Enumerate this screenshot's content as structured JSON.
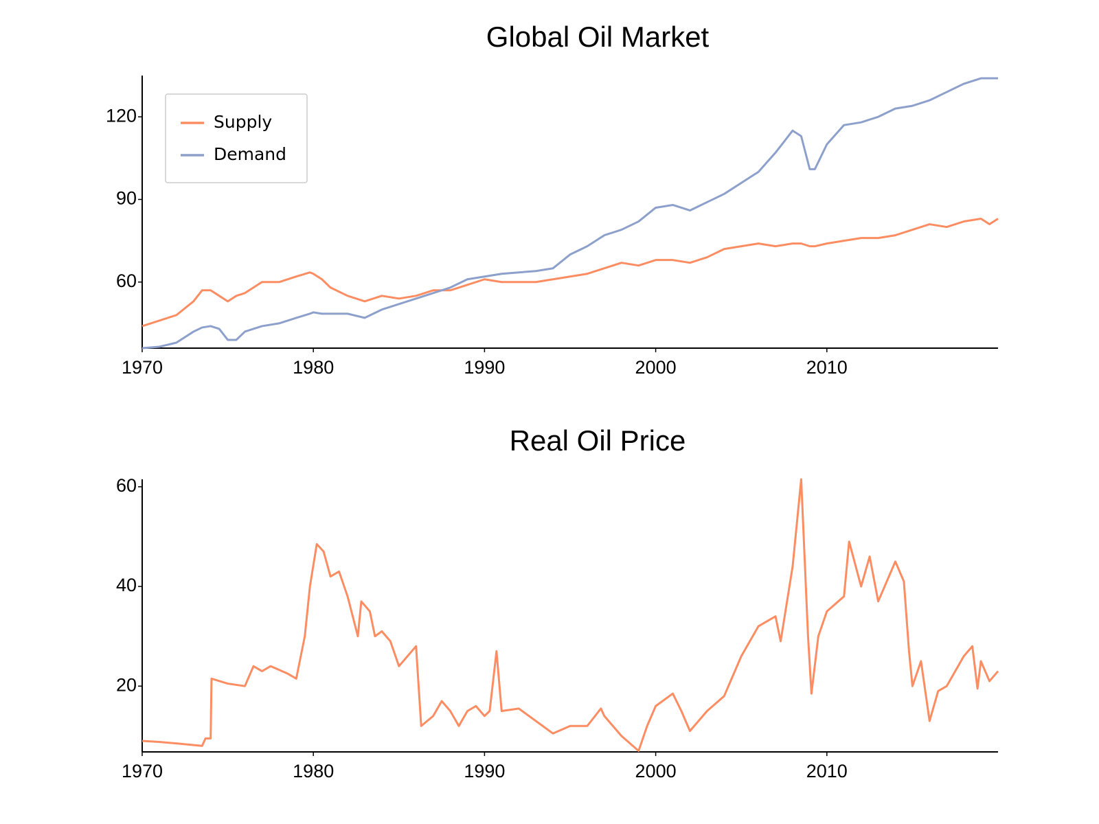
{
  "chart_data": [
    {
      "type": "line",
      "title": "Global Oil Market",
      "x": [
        1970,
        1971,
        1972,
        1973,
        1973.5,
        1974,
        1974.5,
        1975,
        1975.5,
        1976,
        1977,
        1978,
        1979,
        1979.8,
        1980,
        1980.5,
        1981,
        1982,
        1983,
        1984,
        1985,
        1986,
        1987,
        1988,
        1989,
        1990,
        1991,
        1992,
        1993,
        1994,
        1995,
        1996,
        1997,
        1998,
        1999,
        2000,
        2001,
        2002,
        2003,
        2004,
        2005,
        2006,
        2007,
        2008,
        2008.5,
        2009,
        2009.3,
        2010,
        2011,
        2012,
        2013,
        2014,
        2015,
        2016,
        2017,
        2018,
        2019,
        2019.5,
        2020
      ],
      "series": [
        {
          "name": "Supply",
          "color": "#fc8d62",
          "values": [
            44,
            46,
            48,
            53,
            57,
            57,
            55,
            53,
            55,
            56,
            60,
            60,
            62,
            63.5,
            63,
            61,
            58,
            55,
            53,
            55,
            54,
            55,
            57,
            57,
            59,
            61,
            60,
            60,
            60,
            61,
            62,
            63,
            65,
            67,
            66,
            68,
            68,
            67,
            69,
            72,
            73,
            74,
            73,
            74,
            74,
            73,
            73,
            74,
            75,
            76,
            76,
            77,
            79,
            81,
            80,
            82,
            83,
            81,
            83
          ]
        },
        {
          "name": "Demand",
          "color": "#8da0cb",
          "values": [
            36,
            36.5,
            38,
            42,
            43.5,
            44,
            43,
            39,
            39,
            42,
            44,
            45,
            47,
            48.5,
            49,
            48.5,
            48.5,
            48.5,
            47,
            50,
            52,
            54,
            56,
            58,
            61,
            62,
            63,
            63.5,
            64,
            65,
            70,
            73,
            77,
            79,
            82,
            87,
            88,
            86,
            89,
            92,
            96,
            100,
            107,
            115,
            113,
            101,
            101,
            110,
            117,
            118,
            120,
            123,
            124,
            126,
            129,
            132,
            134,
            134,
            134
          ]
        }
      ],
      "xlim": [
        1970,
        2020
      ],
      "ylim": [
        36,
        135
      ],
      "xticks": [
        1970,
        1980,
        1990,
        2000,
        2010
      ],
      "yticks": [
        60,
        90,
        120
      ],
      "legend": "upper left"
    },
    {
      "type": "line",
      "title": "Real Oil Price",
      "x": [
        1970,
        1971,
        1972,
        1973.5,
        1973.7,
        1974,
        1974.05,
        1975,
        1976,
        1976.5,
        1977,
        1977.5,
        1978.5,
        1979,
        1979.5,
        1979.8,
        1980.2,
        1980.6,
        1981,
        1981.5,
        1982,
        1982.6,
        1982.8,
        1983.3,
        1983.6,
        1984,
        1984.5,
        1985,
        1985.5,
        1986,
        1986.3,
        1987,
        1987.5,
        1988,
        1988.5,
        1989,
        1989.5,
        1990,
        1990.3,
        1990.7,
        1991,
        1992,
        1993,
        1994,
        1995,
        1996,
        1996.8,
        1997,
        1998,
        1999,
        1999.5,
        2000,
        2001,
        2001.5,
        2002,
        2003,
        2004,
        2005,
        2006,
        2007,
        2007.3,
        2008,
        2008.5,
        2008.9,
        2009.1,
        2009.5,
        2010,
        2011,
        2011.3,
        2012,
        2012.5,
        2013,
        2014,
        2014.5,
        2014.8,
        2015,
        2015.5,
        2016,
        2016.5,
        2017,
        2018,
        2018.5,
        2018.8,
        2019,
        2019.5,
        2020
      ],
      "color": "#fc8d62",
      "values": [
        9,
        8.8,
        8.5,
        8,
        9.5,
        9.5,
        21.5,
        20.5,
        20,
        24,
        23,
        24,
        22.5,
        21.5,
        30,
        40,
        48.5,
        47,
        42,
        43,
        38,
        30,
        37,
        35,
        30,
        31,
        29,
        24,
        26,
        28,
        12,
        14,
        17,
        15,
        12,
        15,
        16,
        14,
        15,
        27,
        15,
        15.5,
        13,
        10.5,
        12,
        12,
        15.5,
        14,
        10,
        7,
        12,
        16,
        18.5,
        15,
        11,
        15,
        18,
        26,
        32,
        34,
        29,
        44,
        61.5,
        30,
        18.5,
        30,
        35,
        38,
        49,
        40,
        46,
        37,
        45,
        41,
        27,
        20,
        25,
        13,
        19,
        20,
        26,
        28,
        19.5,
        25,
        21,
        23
      ],
      "xlim": [
        1970,
        2020
      ],
      "ylim": [
        6.8,
        61.5
      ],
      "xticks": [
        1970,
        1980,
        1990,
        2000,
        2010
      ],
      "yticks": [
        20,
        40,
        60
      ]
    }
  ]
}
